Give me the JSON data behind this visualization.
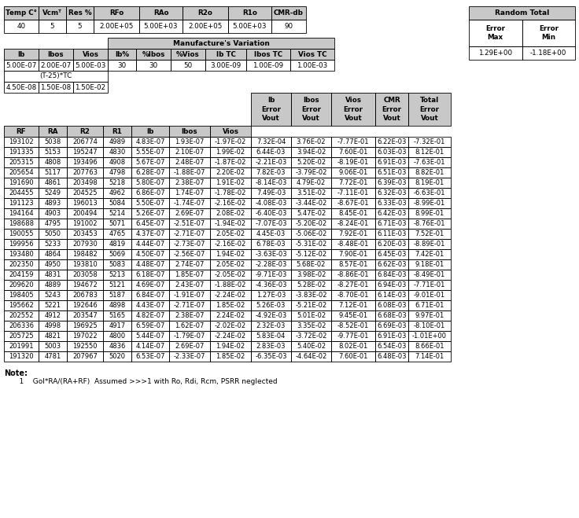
{
  "top_headers": [
    "Temp C°",
    "Vcmᵀ",
    "Res %",
    "RFo",
    "RAo",
    "R2o",
    "R1o",
    "CMR-db"
  ],
  "top_values": [
    "40",
    "5",
    "5",
    "2.00E+05",
    "5.00E+03",
    "2.00E+05",
    "5.00E+03",
    "90"
  ],
  "random_total_header": "Random Total",
  "random_error_labels": [
    "Error",
    "Error",
    "Max",
    "Min"
  ],
  "random_error_max": "1.29E+00",
  "random_error_min": "-1.18E+00",
  "manuf_header": "Manufacture's Variation",
  "manuf_col_headers": [
    "Ib",
    "Ibos",
    "Vios",
    "Ib%",
    "%Ibos",
    "%Vios",
    "Ib TC",
    "Ibos TC",
    "Vios TC"
  ],
  "manuf_values": [
    "5.00E-07",
    "2.00E-07",
    "5.00E-03",
    "30",
    "30",
    "50",
    "3.00E-09",
    "1.00E-09",
    "1.00E-03"
  ],
  "tc_label": "(T-25)*TC",
  "tc_values": [
    "4.50E-08",
    "1.50E-08",
    "1.50E-02"
  ],
  "simple_col_headers": [
    "RF",
    "RA",
    "R2",
    "R1",
    "Ib",
    "Ibos",
    "Vios"
  ],
  "multi_col_headers": [
    "Ib\nError\nVout",
    "Ibos\nError\nVout",
    "Vios\nError\nVout",
    "CMR\nError\nVout",
    "Total\nError\nVout"
  ],
  "data_rows": [
    [
      "193102",
      "5038",
      "206774",
      "4989",
      "4.83E-07",
      "1.93E-07",
      "-1.97E-02",
      "7.32E-04",
      "3.76E-02",
      "-7.77E-01",
      "6.22E-03",
      "-7.32E-01"
    ],
    [
      "191335",
      "5153",
      "195247",
      "4830",
      "5.55E-07",
      "2.10E-07",
      "1.99E-02",
      "6.44E-03",
      "3.94E-02",
      "7.60E-01",
      "6.03E-03",
      "8.12E-01"
    ],
    [
      "205315",
      "4808",
      "193496",
      "4908",
      "5.67E-07",
      "2.48E-07",
      "-1.87E-02",
      "-2.21E-03",
      "5.20E-02",
      "-8.19E-01",
      "6.91E-03",
      "-7.63E-01"
    ],
    [
      "205654",
      "5117",
      "207763",
      "4798",
      "6.28E-07",
      "-1.88E-07",
      "2.20E-02",
      "7.82E-03",
      "-3.79E-02",
      "9.06E-01",
      "6.51E-03",
      "8.82E-01"
    ],
    [
      "191690",
      "4861",
      "203498",
      "5218",
      "5.80E-07",
      "2.38E-07",
      "1.91E-02",
      "-8.14E-03",
      "4.79E-02",
      "7.72E-01",
      "6.39E-03",
      "8.19E-01"
    ],
    [
      "204455",
      "5249",
      "204525",
      "4962",
      "6.86E-07",
      "1.74E-07",
      "-1.78E-02",
      "7.49E-03",
      "3.51E-02",
      "-7.11E-01",
      "6.32E-03",
      "-6.63E-01"
    ],
    [
      "191123",
      "4893",
      "196013",
      "5084",
      "5.50E-07",
      "-1.74E-07",
      "-2.16E-02",
      "-4.08E-03",
      "-3.44E-02",
      "-8.67E-01",
      "6.33E-03",
      "-8.99E-01"
    ],
    [
      "194164",
      "4903",
      "200494",
      "5214",
      "5.26E-07",
      "2.69E-07",
      "2.08E-02",
      "-6.40E-03",
      "5.47E-02",
      "8.45E-01",
      "6.42E-03",
      "8.99E-01"
    ],
    [
      "198688",
      "4795",
      "191002",
      "5071",
      "6.45E-07",
      "-2.51E-07",
      "-1.94E-02",
      "-7.07E-03",
      "-5.20E-02",
      "-8.24E-01",
      "6.71E-03",
      "-8.76E-01"
    ],
    [
      "190055",
      "5050",
      "203453",
      "4765",
      "4.37E-07",
      "-2.71E-07",
      "2.05E-02",
      "4.45E-03",
      "-5.06E-02",
      "7.92E-01",
      "6.11E-03",
      "7.52E-01"
    ],
    [
      "199956",
      "5233",
      "207930",
      "4819",
      "4.44E-07",
      "-2.73E-07",
      "-2.16E-02",
      "6.78E-03",
      "-5.31E-02",
      "-8.48E-01",
      "6.20E-03",
      "-8.89E-01"
    ],
    [
      "193480",
      "4864",
      "198482",
      "5069",
      "4.50E-07",
      "-2.56E-07",
      "1.94E-02",
      "-3.63E-03",
      "-5.12E-02",
      "7.90E-01",
      "6.45E-03",
      "7.42E-01"
    ],
    [
      "202350",
      "4950",
      "193810",
      "5083",
      "4.48E-07",
      "2.74E-07",
      "2.05E-02",
      "-2.28E-03",
      "5.68E-02",
      "8.57E-01",
      "6.62E-03",
      "9.18E-01"
    ],
    [
      "204159",
      "4831",
      "203058",
      "5213",
      "6.18E-07",
      "1.85E-07",
      "-2.05E-02",
      "-9.71E-03",
      "3.98E-02",
      "-8.86E-01",
      "6.84E-03",
      "-8.49E-01"
    ],
    [
      "209620",
      "4889",
      "194672",
      "5121",
      "4.69E-07",
      "2.43E-07",
      "-1.88E-02",
      "-4.36E-03",
      "5.28E-02",
      "-8.27E-01",
      "6.94E-03",
      "-7.71E-01"
    ],
    [
      "198405",
      "5243",
      "206783",
      "5187",
      "6.84E-07",
      "-1.91E-07",
      "-2.24E-02",
      "1.27E-03",
      "-3.83E-02",
      "-8.70E-01",
      "6.14E-03",
      "-9.01E-01"
    ],
    [
      "195662",
      "5221",
      "192646",
      "4898",
      "4.43E-07",
      "-2.71E-07",
      "1.85E-02",
      "5.26E-03",
      "-5.21E-02",
      "7.12E-01",
      "6.08E-03",
      "6.71E-01"
    ],
    [
      "202552",
      "4912",
      "203547",
      "5165",
      "4.82E-07",
      "2.38E-07",
      "2.24E-02",
      "-4.92E-03",
      "5.01E-02",
      "9.45E-01",
      "6.68E-03",
      "9.97E-01"
    ],
    [
      "206336",
      "4998",
      "196925",
      "4917",
      "6.59E-07",
      "1.62E-07",
      "-2.02E-02",
      "2.32E-03",
      "3.35E-02",
      "-8.52E-01",
      "6.69E-03",
      "-8.10E-01"
    ],
    [
      "205725",
      "4821",
      "197022",
      "4800",
      "5.44E-07",
      "-1.79E-07",
      "-2.24E-02",
      "5.83E-04",
      "-3.72E-02",
      "-9.77E-01",
      "6.91E-03",
      "-1.01E+00"
    ],
    [
      "201991",
      "5003",
      "192550",
      "4836",
      "4.14E-07",
      "2.69E-07",
      "1.94E-02",
      "2.83E-03",
      "5.40E-02",
      "8.02E-01",
      "6.54E-03",
      "8.66E-01"
    ],
    [
      "191320",
      "4781",
      "207967",
      "5020",
      "6.53E-07",
      "-2.33E-07",
      "1.85E-02",
      "-6.35E-03",
      "-4.64E-02",
      "7.60E-01",
      "6.48E-03",
      "7.14E-01"
    ]
  ],
  "note_line1": "Note:",
  "note_line2": "    1    Gol*RA/(RA+RF)  Assumed >>>1 with Ro, Rdi, Rcm, PSRR neglected",
  "bg_color": "#ffffff",
  "header_bg": "#c8c8c8",
  "lw": 0.6
}
